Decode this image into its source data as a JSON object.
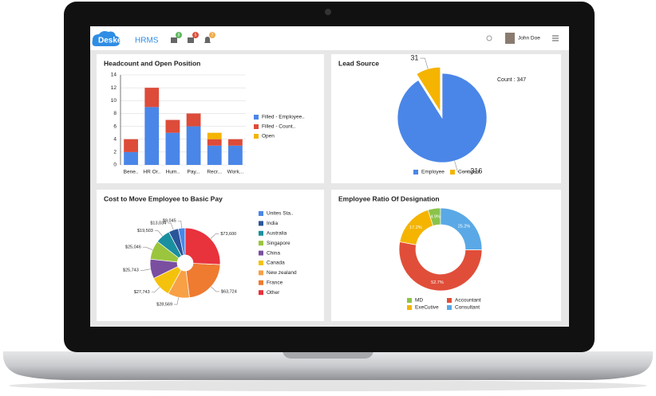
{
  "header": {
    "logo": "Deskera",
    "product": "HRMS",
    "badges": [
      "8",
      "5",
      "7"
    ],
    "user": "John Doe"
  },
  "chart_data": [
    {
      "type": "bar",
      "title": "Headcount and Open Position",
      "categories": [
        "Bene..",
        "HR Or..",
        "Hum..",
        "Pay...",
        "Recr...",
        "Work..."
      ],
      "series": [
        {
          "name": "Filled - Employee..",
          "color": "#4a86e8",
          "values": [
            2,
            9,
            5,
            6,
            3,
            3
          ]
        },
        {
          "name": "Filled - Count..",
          "color": "#dd4b39",
          "values": [
            2,
            3,
            2,
            2,
            1,
            1
          ]
        },
        {
          "name": "Open",
          "color": "#f4b400",
          "values": [
            0,
            0,
            0,
            0,
            1,
            0
          ]
        }
      ],
      "ylim": [
        0,
        14
      ],
      "yticks": [
        0,
        2,
        4,
        6,
        8,
        10,
        12,
        14
      ],
      "stacked": true,
      "grid": true,
      "legend": "right"
    },
    {
      "type": "pie",
      "title": "Lead Source",
      "categories": [
        "Employee",
        "Contigent"
      ],
      "values": [
        316,
        31
      ],
      "colors": [
        "#4a86e8",
        "#f4b400"
      ],
      "annotation": "Count : 347",
      "legend": "bottom"
    },
    {
      "type": "pie",
      "title": "Cost to Move Employee to Basic Pay",
      "categories": [
        "Unites Sta..",
        "India",
        "Australia",
        "Singapore",
        "China",
        "Canada",
        "New zealand",
        "France",
        "Other"
      ],
      "values": [
        9045,
        13034,
        19503,
        25046,
        25743,
        27743,
        28569,
        63724,
        73600
      ],
      "value_labels": [
        "$9,045",
        "$13,034",
        "$19,503",
        "$25,046",
        "$25,743",
        "$27,743",
        "$28,569",
        "$63,724",
        "$73,600"
      ],
      "colors": [
        "#4a86e8",
        "#2a5599",
        "#1a8fa0",
        "#9bc53d",
        "#7b4fa0",
        "#f4c20d",
        "#f7a046",
        "#ee7b30",
        "#e8323c"
      ],
      "legend": "right"
    },
    {
      "type": "donut",
      "title": "Employee Ratio Of Designation",
      "categories": [
        "MD",
        "ExeCutive",
        "Accountant",
        "Consultant"
      ],
      "values": [
        4.9,
        17.2,
        52.7,
        25.2
      ],
      "value_labels": [
        "4.9%",
        "17.2%",
        "52.7%",
        "25.2%"
      ],
      "colors": [
        "#8bc34a",
        "#f4b400",
        "#e04e39",
        "#5aa9e6"
      ],
      "legend": "bottom"
    }
  ]
}
